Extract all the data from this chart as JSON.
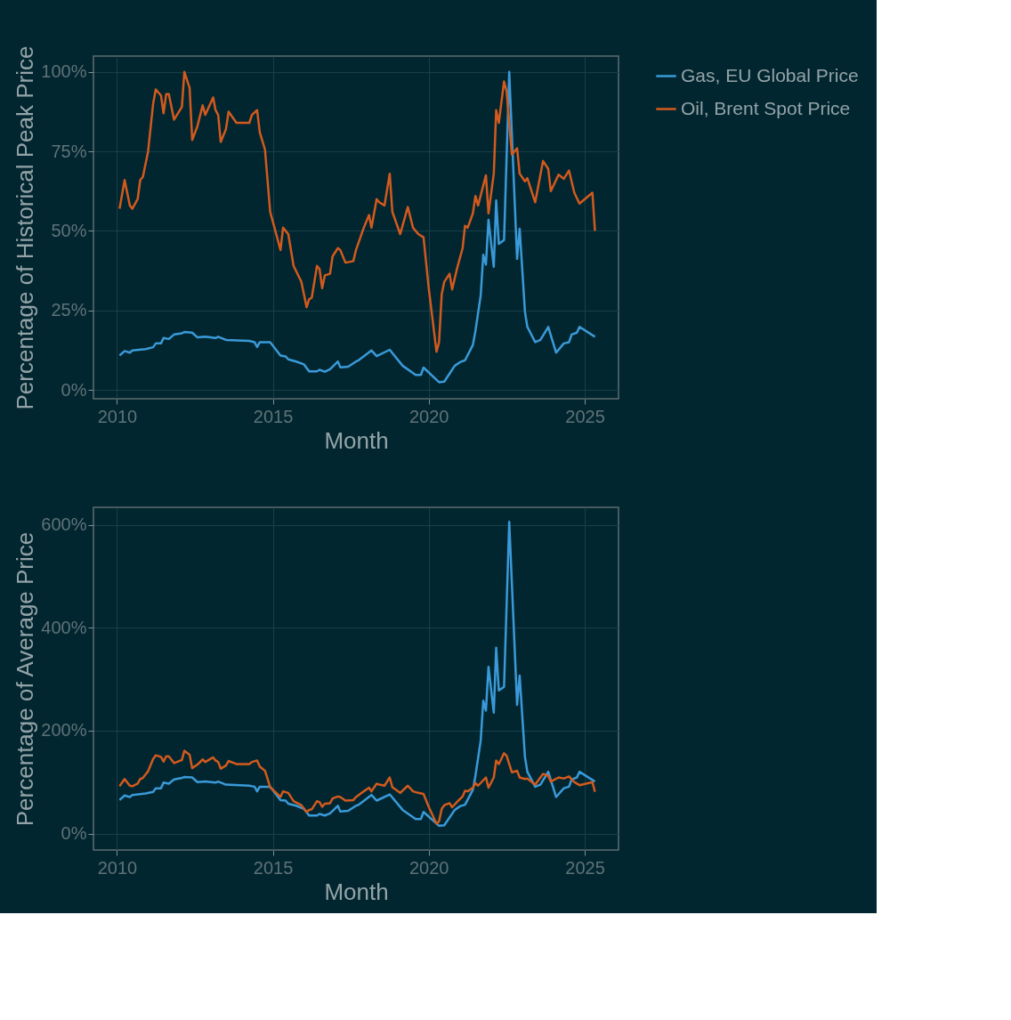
{
  "chart_data": [
    {
      "type": "line",
      "xlabel": "Month",
      "ylabel": "Percentage of Historical Peak Price",
      "legend": "right",
      "grid": true,
      "marker": "none",
      "line_style": "solid",
      "xlim": [
        "2009-04",
        "2026-02"
      ],
      "xticks": [
        "2010",
        "2015",
        "2020",
        "2025"
      ],
      "ylim": [
        -2.8,
        105
      ],
      "yticks": [
        {
          "value": 0,
          "label": "0%"
        },
        {
          "value": 25,
          "label": "25%"
        },
        {
          "value": 50,
          "label": "50%"
        },
        {
          "value": 75,
          "label": "75%"
        },
        {
          "value": 100,
          "label": "100%"
        }
      ],
      "series": [
        {
          "name": "Gas, EU Global Price",
          "color": "#3a9ad9",
          "x": [
            "2010-02",
            "2010-04",
            "2010-06",
            "2010-07",
            "2010-12",
            "2011-03",
            "2011-04",
            "2011-06",
            "2011-07",
            "2011-09",
            "2011-11",
            "2012-02",
            "2012-03",
            "2012-06",
            "2012-08",
            "2012-11",
            "2013-03",
            "2013-04",
            "2013-07",
            "2014-04",
            "2014-06",
            "2014-07",
            "2014-08",
            "2014-12",
            "2015-04",
            "2015-06",
            "2015-07",
            "2015-10",
            "2016-01",
            "2016-03",
            "2016-06",
            "2016-07",
            "2016-09",
            "2016-11",
            "2017-02",
            "2017-03",
            "2017-06",
            "2017-09",
            "2017-10",
            "2018-03",
            "2018-05",
            "2018-10",
            "2019-03",
            "2019-08",
            "2019-10",
            "2019-11",
            "2020-05",
            "2020-07",
            "2020-11",
            "2021-01",
            "2021-03",
            "2021-06",
            "2021-07",
            "2021-09",
            "2021-10",
            "2021-11",
            "2021-12",
            "2022-02",
            "2022-03",
            "2022-04",
            "2022-06",
            "2022-08",
            "2022-11",
            "2022-12",
            "2023-02",
            "2023-03",
            "2023-06",
            "2023-08",
            "2023-11",
            "2024-02",
            "2024-05",
            "2024-07",
            "2024-08",
            "2024-10",
            "2024-11",
            "2025-05"
          ],
          "values": [
            10.8,
            12.2,
            11.7,
            12.4,
            12.8,
            13.4,
            14.6,
            14.6,
            16.3,
            16,
            17.4,
            17.8,
            18.2,
            18,
            16.5,
            16.7,
            16.3,
            16.7,
            15.7,
            15.4,
            15,
            13.5,
            15,
            15,
            10.8,
            10.5,
            9.6,
            8.9,
            8,
            5.8,
            5.8,
            6.3,
            5.7,
            6.5,
            8.9,
            7.1,
            7.3,
            8.9,
            9.3,
            12.4,
            10.6,
            12.6,
            7.6,
            4.7,
            4.7,
            7,
            2.4,
            2.6,
            7.6,
            8.7,
            9.3,
            14.1,
            18.5,
            29.8,
            42.5,
            39.4,
            53.5,
            38.7,
            59.6,
            45.9,
            47.1,
            100,
            41.2,
            50.7,
            24.6,
            19.8,
            15,
            15.7,
            19.8,
            11.7,
            14.6,
            15,
            17.4,
            18,
            19.8,
            16.7
          ]
        },
        {
          "name": "Oil, Brent Spot Price",
          "color": "#d35a1e",
          "x": [
            "2010-02",
            "2010-04",
            "2010-06",
            "2010-07",
            "2010-09",
            "2010-10",
            "2010-11",
            "2011-01",
            "2011-03",
            "2011-04",
            "2011-06",
            "2011-07",
            "2011-08",
            "2011-09",
            "2011-11",
            "2012-02",
            "2012-03",
            "2012-05",
            "2012-06",
            "2012-08",
            "2012-10",
            "2012-11",
            "2013-02",
            "2013-03",
            "2013-04",
            "2013-05",
            "2013-07",
            "2013-08",
            "2013-11",
            "2014-04",
            "2014-05",
            "2014-07",
            "2014-08",
            "2014-10",
            "2014-12",
            "2015-04",
            "2015-05",
            "2015-07",
            "2015-09",
            "2015-12",
            "2016-02",
            "2016-03",
            "2016-04",
            "2016-06",
            "2016-07",
            "2016-08",
            "2016-09",
            "2016-11",
            "2016-12",
            "2017-02",
            "2017-03",
            "2017-05",
            "2017-08",
            "2017-09",
            "2017-12",
            "2018-02",
            "2018-03",
            "2018-05",
            "2018-06",
            "2018-08",
            "2018-10",
            "2018-11",
            "2019-02",
            "2019-05",
            "2019-07",
            "2019-09",
            "2019-11",
            "2020-01",
            "2020-04",
            "2020-05",
            "2020-06",
            "2020-07",
            "2020-09",
            "2020-10",
            "2020-12",
            "2021-02",
            "2021-03",
            "2021-04",
            "2021-06",
            "2021-07",
            "2021-08",
            "2021-11",
            "2021-12",
            "2022-02",
            "2022-03",
            "2022-04",
            "2022-06",
            "2022-07",
            "2022-09",
            "2022-11",
            "2022-12",
            "2023-02",
            "2023-03",
            "2023-06",
            "2023-09",
            "2023-11",
            "2023-12",
            "2024-03",
            "2024-05",
            "2024-07",
            "2024-09",
            "2024-11",
            "2025-04",
            "2025-05"
          ],
          "values": [
            57,
            66,
            58,
            57,
            60,
            66,
            67,
            75,
            90,
            94.5,
            92.6,
            87,
            93,
            93,
            85,
            89,
            100,
            95,
            78.6,
            83,
            89.5,
            86.5,
            92,
            88,
            86.5,
            78,
            82,
            87.5,
            84,
            84,
            86.5,
            88,
            81,
            75.6,
            56,
            44,
            51,
            49,
            39,
            34,
            26,
            28.5,
            29,
            39,
            38,
            32,
            36,
            36.5,
            42,
            44.6,
            44,
            40,
            40.5,
            44,
            51,
            55,
            51,
            60,
            59,
            58,
            68,
            56,
            49,
            57.5,
            51,
            49,
            48,
            32,
            12,
            15,
            30,
            34,
            36.5,
            31.6,
            38.5,
            44.6,
            51.6,
            51,
            55.5,
            61,
            58,
            67.5,
            55.5,
            68,
            88,
            84,
            97,
            94,
            74,
            76,
            68,
            65.6,
            66.6,
            59,
            72,
            69.5,
            62.5,
            67.7,
            66.4,
            69,
            62,
            58.6,
            62,
            50
          ]
        }
      ]
    },
    {
      "type": "line",
      "xlabel": "Month",
      "ylabel": "Percentage of Average Price",
      "legend": "right",
      "grid": true,
      "marker": "none",
      "line_style": "solid",
      "xlim": [
        "2009-04",
        "2026-02"
      ],
      "xticks": [
        "2010",
        "2015",
        "2020",
        "2025"
      ],
      "ylim": [
        -32,
        634
      ],
      "yticks": [
        {
          "value": 0,
          "label": "0%"
        },
        {
          "value": 200,
          "label": "200%"
        },
        {
          "value": 400,
          "label": "400%"
        },
        {
          "value": 600,
          "label": "600%"
        }
      ],
      "series": [
        {
          "name": "Gas, EU Global Price",
          "color": "#3a9ad9",
          "x": [
            "2010-02",
            "2010-04",
            "2010-06",
            "2010-07",
            "2010-12",
            "2011-03",
            "2011-04",
            "2011-06",
            "2011-07",
            "2011-09",
            "2011-11",
            "2012-02",
            "2012-03",
            "2012-06",
            "2012-08",
            "2012-11",
            "2013-03",
            "2013-04",
            "2013-07",
            "2014-04",
            "2014-06",
            "2014-07",
            "2014-08",
            "2014-12",
            "2015-04",
            "2015-06",
            "2015-07",
            "2015-10",
            "2016-01",
            "2016-03",
            "2016-06",
            "2016-07",
            "2016-09",
            "2016-11",
            "2017-02",
            "2017-03",
            "2017-06",
            "2017-09",
            "2017-10",
            "2018-03",
            "2018-05",
            "2018-10",
            "2019-03",
            "2019-08",
            "2019-10",
            "2019-11",
            "2020-05",
            "2020-07",
            "2020-11",
            "2021-01",
            "2021-03",
            "2021-06",
            "2021-07",
            "2021-09",
            "2021-10",
            "2021-11",
            "2021-12",
            "2022-02",
            "2022-03",
            "2022-04",
            "2022-06",
            "2022-08",
            "2022-11",
            "2022-12",
            "2023-02",
            "2023-03",
            "2023-06",
            "2023-08",
            "2023-11",
            "2024-02",
            "2024-05",
            "2024-07",
            "2024-08",
            "2024-10",
            "2024-11",
            "2025-05"
          ],
          "values": [
            65,
            74,
            71,
            75,
            78,
            81,
            88,
            88,
            99,
            97,
            105,
            108,
            110,
            109,
            100,
            101,
            99,
            101,
            95,
            93,
            91,
            82,
            91,
            91,
            65,
            64,
            58,
            54,
            48,
            35,
            35,
            38,
            35,
            39,
            54,
            43,
            44,
            54,
            56,
            75,
            64,
            76,
            46,
            28,
            28,
            42,
            15,
            16,
            46,
            53,
            56,
            85,
            112,
            181,
            258,
            239,
            324,
            235,
            361,
            278,
            285,
            606,
            250,
            307,
            149,
            120,
            91,
            95,
            120,
            71,
            88,
            91,
            105,
            109,
            120,
            101
          ]
        },
        {
          "name": "Oil, Brent Spot Price",
          "color": "#d35a1e",
          "x": [
            "2010-02",
            "2010-04",
            "2010-06",
            "2010-07",
            "2010-09",
            "2010-10",
            "2010-11",
            "2011-01",
            "2011-03",
            "2011-04",
            "2011-06",
            "2011-07",
            "2011-08",
            "2011-09",
            "2011-11",
            "2012-02",
            "2012-03",
            "2012-05",
            "2012-06",
            "2012-08",
            "2012-10",
            "2012-11",
            "2013-02",
            "2013-03",
            "2013-04",
            "2013-05",
            "2013-07",
            "2013-08",
            "2013-11",
            "2014-04",
            "2014-05",
            "2014-07",
            "2014-08",
            "2014-10",
            "2014-12",
            "2015-04",
            "2015-05",
            "2015-07",
            "2015-09",
            "2015-12",
            "2016-02",
            "2016-03",
            "2016-04",
            "2016-06",
            "2016-07",
            "2016-08",
            "2016-09",
            "2016-11",
            "2016-12",
            "2017-02",
            "2017-03",
            "2017-05",
            "2017-08",
            "2017-09",
            "2017-12",
            "2018-02",
            "2018-03",
            "2018-05",
            "2018-06",
            "2018-08",
            "2018-10",
            "2018-11",
            "2019-02",
            "2019-05",
            "2019-07",
            "2019-09",
            "2019-11",
            "2020-01",
            "2020-04",
            "2020-05",
            "2020-06",
            "2020-07",
            "2020-09",
            "2020-10",
            "2020-12",
            "2021-02",
            "2021-03",
            "2021-04",
            "2021-06",
            "2021-07",
            "2021-08",
            "2021-11",
            "2021-12",
            "2022-02",
            "2022-03",
            "2022-04",
            "2022-06",
            "2022-07",
            "2022-09",
            "2022-11",
            "2022-12",
            "2023-02",
            "2023-03",
            "2023-06",
            "2023-09",
            "2023-11",
            "2023-12",
            "2024-03",
            "2024-05",
            "2024-07",
            "2024-09",
            "2024-11",
            "2025-04",
            "2025-05"
          ],
          "values": [
            92,
            106,
            93,
            92,
            97,
            106,
            108,
            121,
            145,
            152,
            149,
            140,
            150,
            150,
            137,
            143,
            161,
            153,
            127,
            134,
            144,
            139,
            148,
            142,
            139,
            126,
            132,
            141,
            135,
            135,
            139,
            142,
            130,
            122,
            90,
            71,
            82,
            79,
            63,
            55,
            42,
            46,
            47,
            63,
            61,
            52,
            58,
            59,
            68,
            72,
            71,
            64,
            65,
            71,
            82,
            89,
            82,
            97,
            95,
            93,
            109,
            90,
            79,
            93,
            82,
            79,
            77,
            52,
            19,
            24,
            48,
            55,
            59,
            51,
            62,
            72,
            83,
            82,
            89,
            98,
            93,
            109,
            89,
            109,
            142,
            135,
            156,
            151,
            119,
            122,
            109,
            106,
            107,
            95,
            116,
            112,
            101,
            109,
            107,
            111,
            100,
            94,
            100,
            81
          ]
        }
      ]
    }
  ]
}
